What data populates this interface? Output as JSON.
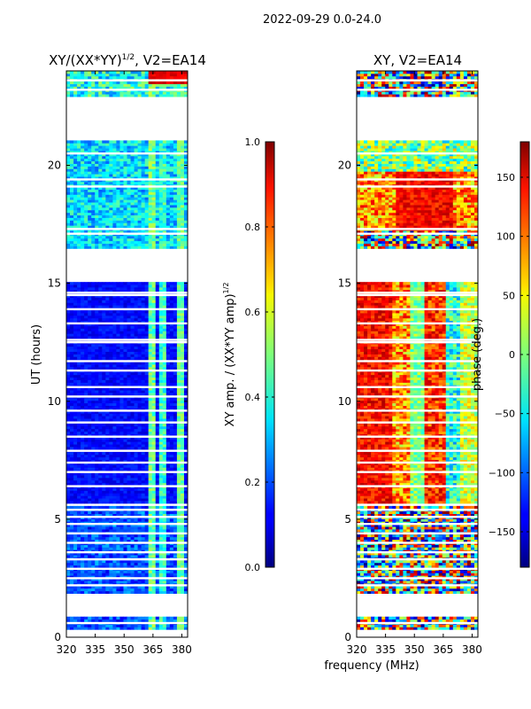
{
  "suptitle": "2022-09-29 0.0-24.0",
  "common_xlabel": "frequency (MHz)",
  "chart_data": [
    {
      "type": "heatmap",
      "title": "XY/(XX*YY)",
      "title_sup": "1/2",
      "title_suffix": ", V2=EA14",
      "ylabel": "UT (hours)",
      "xlim": [
        320,
        383
      ],
      "ylim": [
        0,
        24
      ],
      "xticks": [
        320,
        335,
        350,
        365,
        380
      ],
      "yticks": [
        0,
        5,
        10,
        15,
        20
      ],
      "empty_bands": [
        [
          1.8,
          2.7
        ],
        [
          21.1,
          22.9
        ],
        [
          16.5,
          15.1
        ]
      ],
      "colorbar": {
        "label": "XY amp. / (XX*YY amp)",
        "label_sup": "1/2",
        "range": [
          0.0,
          1.0
        ],
        "ticks": [
          0.0,
          0.2,
          0.4,
          0.6,
          0.8,
          1.0
        ],
        "tick_labels": [
          "0.0",
          "0.2",
          "0.4",
          "0.6",
          "0.8",
          "1.0"
        ],
        "colormap": "jet"
      }
    },
    {
      "type": "heatmap",
      "title": "XY, V2=EA14",
      "xlim": [
        320,
        383
      ],
      "ylim": [
        0,
        24
      ],
      "xticks": [
        320,
        335,
        350,
        365,
        380
      ],
      "yticks": [
        0,
        5,
        10,
        15,
        20
      ],
      "colorbar": {
        "label": "phase (deg.)",
        "range": [
          -180,
          180
        ],
        "ticks": [
          -150,
          -100,
          -50,
          0,
          50,
          100,
          150
        ],
        "tick_labels": [
          "−150",
          "−100",
          "−50",
          "0",
          "50",
          "100",
          "150"
        ],
        "colormap": "jet"
      }
    }
  ]
}
